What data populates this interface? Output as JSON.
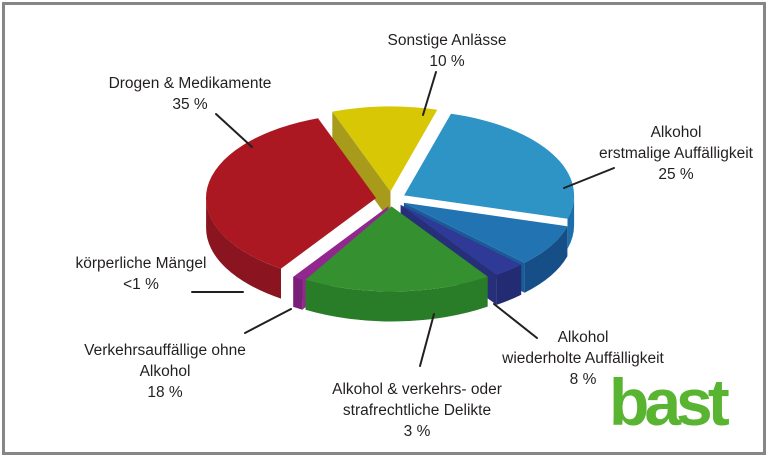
{
  "chart_data": {
    "type": "pie",
    "style": "3d-exploded",
    "unit": "%",
    "start_angle_deg": -110,
    "text_color": "#231F20",
    "slices": [
      {
        "id": "sonstige",
        "label": "Sonstige Anlässe",
        "value": 10,
        "display_pct": "10 %",
        "label_lines": [
          "Sonstige Anlässe",
          "10 %"
        ],
        "color_top": "#D8C705",
        "color_side": "#A89B1B",
        "color_cut": "#A89B1B",
        "cuts": [
          "start"
        ]
      },
      {
        "id": "alkohol-erstmalig",
        "label": "Alkohol erstmalige Auffälligkeit",
        "value": 25,
        "display_pct": "25 %",
        "label_lines": [
          "Alkohol",
          "erstmalige Auffälligkeit",
          "25 %"
        ],
        "color_top": "#2E93C5",
        "color_side": "#1D6FA9",
        "color_cut": "#1D6FA9",
        "cuts": []
      },
      {
        "id": "alkohol-wiederholt",
        "label": "Alkohol wiederholte Auffälligkeit",
        "value": 8,
        "display_pct": "8 %",
        "label_lines": [
          "Alkohol",
          "wiederholte Auffälligkeit",
          "8 %"
        ],
        "color_top": "#2173B2",
        "color_side": "#164F87",
        "color_cut": "#1A5C99",
        "cuts": [
          "end"
        ]
      },
      {
        "id": "alkohol-delikte",
        "label": "Alkohol & verkehrs- oder strafrechtliche Delikte",
        "value": 3,
        "display_pct": "3 %",
        "label_lines": [
          "Alkohol & verkehrs- oder",
          "strafrechtliche Delikte",
          "3 %"
        ],
        "color_top": "#2F3A96",
        "color_side": "#232B72",
        "color_cut": "#272F79",
        "cuts": [
          "end"
        ]
      },
      {
        "id": "verkehrsauffaellige",
        "label": "Verkehrsauffällige ohne Alkohol",
        "value": 18,
        "display_pct": "18 %",
        "label_lines": [
          "Verkehrsauffällige ohne",
          "Alkohol",
          "18 %"
        ],
        "color_top": "#35912F",
        "color_side": "#2A7D28",
        "color_cut": "#2B7A27",
        "cuts": [
          "start"
        ]
      },
      {
        "id": "koerperliche-maengel",
        "label": "körperliche Mängel",
        "value": 1,
        "display_pct": "<1 %",
        "label_lines": [
          "körperliche Mängel",
          "<1 %"
        ],
        "color_top": "#92278F",
        "color_side": "#7A1F77",
        "color_cut": "#92278F",
        "cuts": [
          "start",
          "end"
        ]
      },
      {
        "id": "drogen",
        "label": "Drogen & Medikamente",
        "value": 35,
        "display_pct": "35 %",
        "label_lines": [
          "Drogen & Medikamente",
          "35 %"
        ],
        "color_top": "#AC1822",
        "color_side": "#8A141F",
        "color_cut": "#8A141F",
        "cuts": []
      }
    ]
  },
  "logo": {
    "text": "bast",
    "color": "#58B431"
  }
}
